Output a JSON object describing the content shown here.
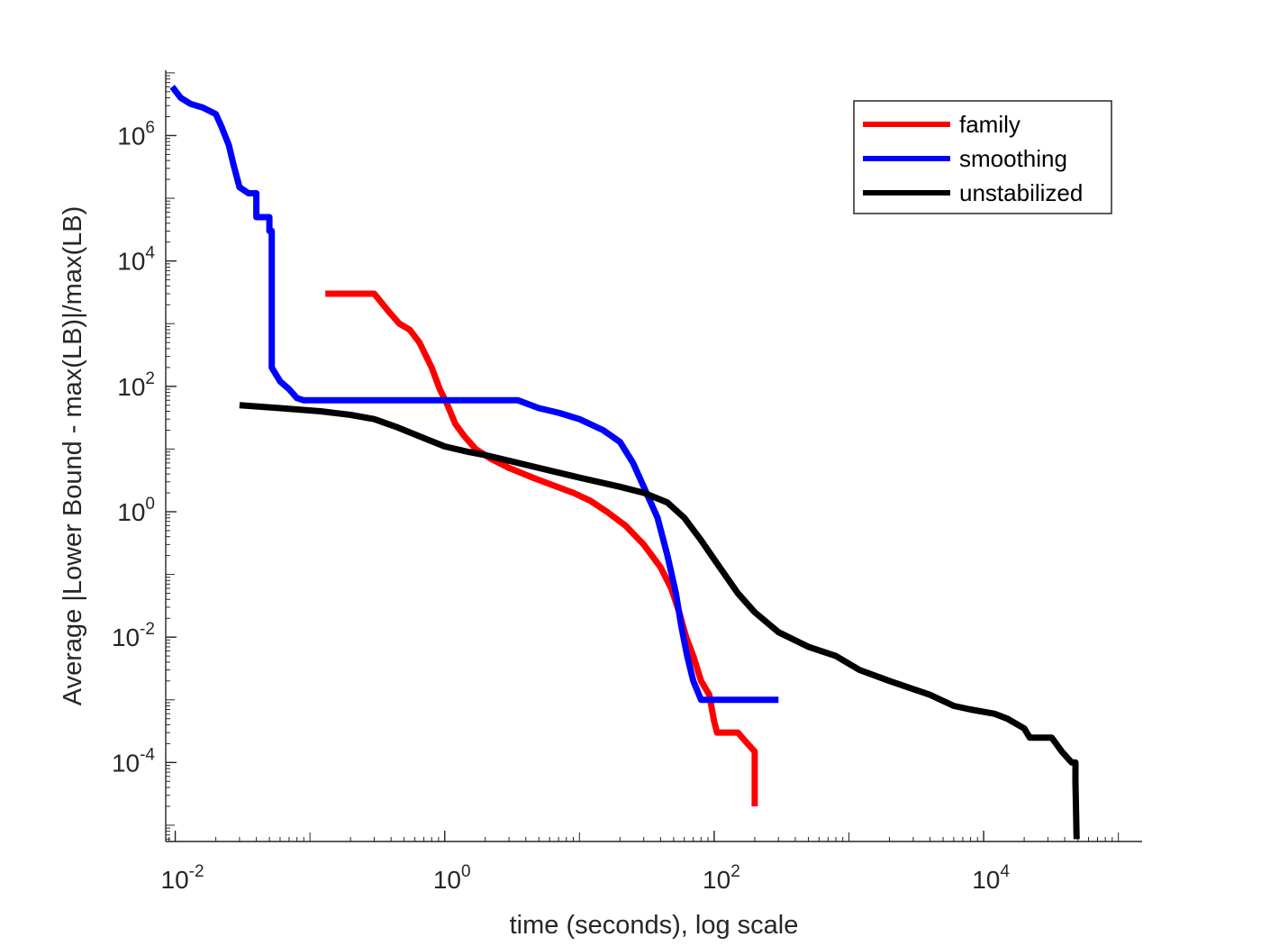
{
  "chart_data": {
    "type": "line",
    "title": "",
    "xlabel": "time (seconds), log scale",
    "ylabel": "Average |Lower Bound - max(LB)|/max(LB)",
    "xscale": "log",
    "yscale": "log",
    "xlim": [
      0.0085,
      150000
    ],
    "ylim": [
      5.5e-06,
      11000000
    ],
    "xticks": [
      {
        "value": 0.01,
        "base": "10",
        "exp": "-2"
      },
      {
        "value": 1,
        "base": "10",
        "exp": "0"
      },
      {
        "value": 100,
        "base": "10",
        "exp": "2"
      },
      {
        "value": 10000,
        "base": "10",
        "exp": "4"
      }
    ],
    "yticks": [
      {
        "value": 0.0001,
        "base": "10",
        "exp": "-4"
      },
      {
        "value": 0.01,
        "base": "10",
        "exp": "-2"
      },
      {
        "value": 1,
        "base": "10",
        "exp": "0"
      },
      {
        "value": 100,
        "base": "10",
        "exp": "2"
      },
      {
        "value": 10000,
        "base": "10",
        "exp": "4"
      },
      {
        "value": 1000000,
        "base": "10",
        "exp": "6"
      }
    ],
    "legend_position": "top-right",
    "series": [
      {
        "name": "family",
        "color": "#ff0000",
        "points": [
          [
            0.13,
            3000
          ],
          [
            0.3,
            3000
          ],
          [
            0.38,
            1600
          ],
          [
            0.46,
            1000
          ],
          [
            0.55,
            800
          ],
          [
            0.65,
            500
          ],
          [
            0.8,
            200
          ],
          [
            0.92,
            90
          ],
          [
            1.05,
            50
          ],
          [
            1.2,
            25
          ],
          [
            1.4,
            16
          ],
          [
            1.7,
            10
          ],
          [
            2.2,
            7
          ],
          [
            3,
            5
          ],
          [
            4.5,
            3.5
          ],
          [
            6.5,
            2.6
          ],
          [
            9,
            2
          ],
          [
            12,
            1.5
          ],
          [
            16,
            1
          ],
          [
            22,
            0.6
          ],
          [
            30,
            0.3
          ],
          [
            40,
            0.13
          ],
          [
            48,
            0.06
          ],
          [
            55,
            0.025
          ],
          [
            62,
            0.01
          ],
          [
            70,
            0.005
          ],
          [
            80,
            0.002
          ],
          [
            92,
            0.0012
          ],
          [
            100,
            0.00045
          ],
          [
            105,
            0.0003
          ],
          [
            150,
            0.0003
          ],
          [
            170,
            0.00022
          ],
          [
            200,
            0.00015
          ],
          [
            200,
            2e-05
          ]
        ]
      },
      {
        "name": "smoothing",
        "color": "#0000ff",
        "points": [
          [
            0.0095,
            6000000
          ],
          [
            0.011,
            4000000
          ],
          [
            0.013,
            3200000
          ],
          [
            0.016,
            2800000
          ],
          [
            0.02,
            2200000
          ],
          [
            0.022,
            1400000
          ],
          [
            0.025,
            700000
          ],
          [
            0.027,
            350000
          ],
          [
            0.03,
            150000
          ],
          [
            0.035,
            120000
          ],
          [
            0.04,
            120000
          ],
          [
            0.04,
            50000
          ],
          [
            0.05,
            50000
          ],
          [
            0.05,
            30000
          ],
          [
            0.052,
            30000
          ],
          [
            0.052,
            200
          ],
          [
            0.06,
            120
          ],
          [
            0.07,
            90
          ],
          [
            0.08,
            65
          ],
          [
            0.09,
            60
          ],
          [
            1,
            60
          ],
          [
            3.5,
            60
          ],
          [
            5,
            45
          ],
          [
            7,
            38
          ],
          [
            10,
            30
          ],
          [
            15,
            20
          ],
          [
            20,
            13
          ],
          [
            25,
            6
          ],
          [
            30,
            2.5
          ],
          [
            38,
            0.8
          ],
          [
            45,
            0.2
          ],
          [
            52,
            0.05
          ],
          [
            57,
            0.015
          ],
          [
            63,
            0.005
          ],
          [
            70,
            0.002
          ],
          [
            80,
            0.001
          ],
          [
            300,
            0.001
          ]
        ]
      },
      {
        "name": "unstabilized",
        "color": "#000000",
        "points": [
          [
            0.03,
            50
          ],
          [
            0.06,
            45
          ],
          [
            0.12,
            40
          ],
          [
            0.2,
            35
          ],
          [
            0.3,
            30
          ],
          [
            0.45,
            22
          ],
          [
            0.7,
            15
          ],
          [
            1,
            11
          ],
          [
            1.5,
            9
          ],
          [
            2,
            8
          ],
          [
            3,
            6.5
          ],
          [
            5,
            5
          ],
          [
            10,
            3.5
          ],
          [
            20,
            2.5
          ],
          [
            30,
            2
          ],
          [
            45,
            1.4
          ],
          [
            60,
            0.8
          ],
          [
            80,
            0.35
          ],
          [
            110,
            0.13
          ],
          [
            150,
            0.05
          ],
          [
            200,
            0.025
          ],
          [
            300,
            0.012
          ],
          [
            500,
            0.007
          ],
          [
            800,
            0.005
          ],
          [
            1200,
            0.003
          ],
          [
            2000,
            0.002
          ],
          [
            4000,
            0.0012
          ],
          [
            6000,
            0.0008
          ],
          [
            8000,
            0.0007
          ],
          [
            12000,
            0.0006
          ],
          [
            15000,
            0.0005
          ],
          [
            20000,
            0.00035
          ],
          [
            22000,
            0.00025
          ],
          [
            32000,
            0.00025
          ],
          [
            38000,
            0.00015
          ],
          [
            45000,
            0.0001
          ],
          [
            48000,
            0.0001
          ],
          [
            48000,
            5e-05
          ],
          [
            49000,
            6e-06
          ]
        ]
      }
    ]
  }
}
